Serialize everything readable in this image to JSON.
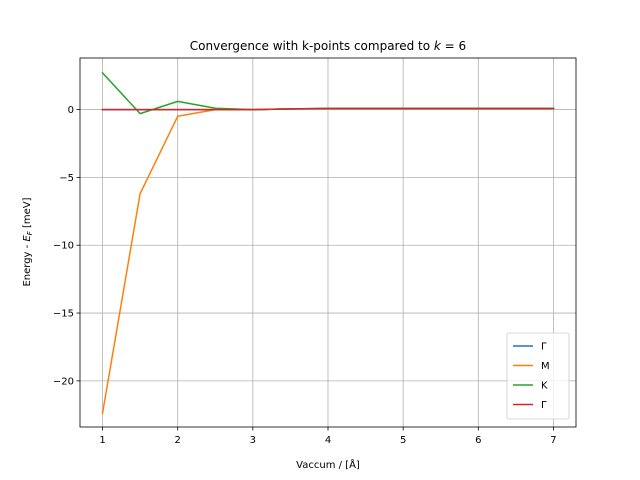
{
  "chart_data": {
    "type": "line",
    "title": "Convergence with k-points compared to k = 6",
    "title_parts": {
      "prefix": "Convergence with k-points compared to ",
      "math": "k",
      "suffix": " = 6"
    },
    "xlabel": "Vaccum / [Å]",
    "ylabel_parts": {
      "prefix": "Energy - ",
      "math": "E",
      "subscript": "F",
      "suffix": " [meV]"
    },
    "xlim": [
      0.7,
      7.3
    ],
    "ylim": [
      -23.4,
      3.8
    ],
    "xticks": [
      1,
      2,
      3,
      4,
      5,
      6,
      7
    ],
    "xtick_labels": [
      "1",
      "2",
      "3",
      "4",
      "5",
      "6",
      "7"
    ],
    "yticks": [
      -20,
      -15,
      -10,
      -5,
      0
    ],
    "ytick_labels": [
      "−20",
      "−15",
      "−10",
      "−5",
      "0"
    ],
    "grid": true,
    "legend_position": "lower-right",
    "x": [
      1,
      1.5,
      2,
      2.5,
      3,
      3.5,
      4,
      4.5,
      5,
      5.5,
      6,
      6.5,
      7
    ],
    "series": [
      {
        "name": "Γ",
        "color": "#1f77b4",
        "values": [
          0,
          0,
          0,
          0,
          0,
          0.05,
          0.08,
          0.08,
          0.08,
          0.08,
          0.08,
          0.08,
          0.08
        ]
      },
      {
        "name": "M",
        "color": "#ff7f0e",
        "values": [
          -22.4,
          -6.2,
          -0.5,
          0.0,
          0.0,
          0.05,
          0.08,
          0.08,
          0.08,
          0.08,
          0.08,
          0.08,
          0.08
        ]
      },
      {
        "name": "K",
        "color": "#2ca02c",
        "values": [
          2.7,
          -0.3,
          0.6,
          0.1,
          0.0,
          0.05,
          0.08,
          0.08,
          0.08,
          0.08,
          0.08,
          0.08,
          0.08
        ]
      },
      {
        "name": "Γ",
        "color": "#d62728",
        "values": [
          0,
          0,
          0,
          0,
          0,
          0.05,
          0.08,
          0.08,
          0.08,
          0.08,
          0.08,
          0.08,
          0.08
        ]
      }
    ]
  }
}
